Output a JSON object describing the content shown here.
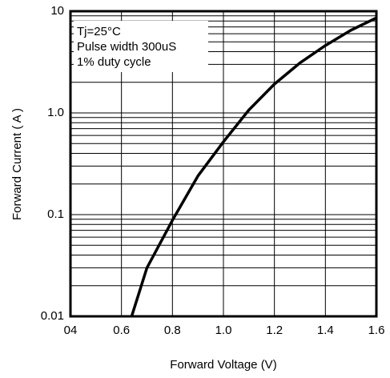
{
  "chart_data": {
    "type": "line",
    "x_label": "Forward Voltage (V)",
    "y_label": "Forward Current ( A )",
    "annotations": [
      "Tj=25°C",
      "Pulse width 300uS",
      "1% duty cycle"
    ],
    "x": [
      0.64,
      0.7,
      0.8,
      0.9,
      1.0,
      1.1,
      1.2,
      1.3,
      1.4,
      1.5,
      1.6
    ],
    "series": [
      {
        "color": "#000000",
        "values": [
          0.01,
          0.03,
          0.088,
          0.24,
          0.52,
          1.07,
          1.92,
          3.1,
          4.6,
          6.5,
          8.6
        ]
      }
    ],
    "xlim": [
      0.4,
      1.6
    ],
    "xticks": [
      {
        "value": 0.4,
        "label": "04"
      },
      0.6,
      0.8,
      {
        "value": 1.0,
        "label": "1.0"
      },
      1.2,
      1.4,
      1.6
    ],
    "ylim": [
      0.01,
      10
    ],
    "yticks": [
      0.01,
      0.1,
      {
        "value": 1.0,
        "label": "1.0"
      },
      10
    ],
    "y_log": true,
    "grid": true,
    "minor_grid": true
  }
}
